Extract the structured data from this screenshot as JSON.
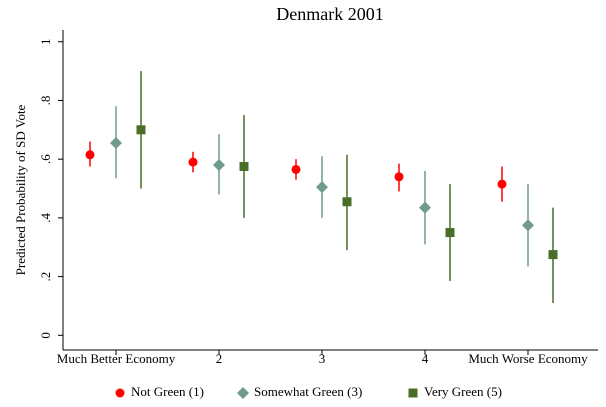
{
  "chart_data": {
    "type": "errorbar",
    "title": "Denmark 2001",
    "y_label": "Predicted Probability of SD Vote",
    "categories": [
      "Much Better Economy",
      "2",
      "3",
      "4",
      "Much Worse Economy"
    ],
    "ylim": [
      -0.05,
      1.04
    ],
    "yticks": [
      0,
      {
        "value": 0.2,
        "label": ".2"
      },
      {
        "value": 0.4,
        "label": ".4"
      },
      {
        "value": 0.6,
        "label": ".6"
      },
      {
        "value": 0.8,
        "label": ".8"
      },
      1
    ],
    "legend": "bottom",
    "series": [
      {
        "name": "Not Green (1)",
        "color": "#ff0000",
        "marker": "circle",
        "values": [
          0.615,
          0.59,
          0.565,
          0.54,
          0.515
        ],
        "lower": [
          0.575,
          0.555,
          0.53,
          0.49,
          0.455
        ],
        "upper": [
          0.66,
          0.625,
          0.6,
          0.585,
          0.575
        ]
      },
      {
        "name": "Somewhat Green (3)",
        "color": "#6f9a8d",
        "marker": "diamond",
        "values": [
          0.655,
          0.58,
          0.505,
          0.435,
          0.375
        ],
        "lower": [
          0.535,
          0.48,
          0.4,
          0.31,
          0.235
        ],
        "upper": [
          0.78,
          0.685,
          0.61,
          0.56,
          0.515
        ]
      },
      {
        "name": "Very Green (5)",
        "color": "#4a6e28",
        "marker": "square",
        "values": [
          0.7,
          0.575,
          0.455,
          0.35,
          0.275
        ],
        "lower": [
          0.5,
          0.4,
          0.29,
          0.185,
          0.11
        ],
        "upper": [
          0.9,
          0.75,
          0.615,
          0.515,
          0.435
        ]
      }
    ]
  }
}
